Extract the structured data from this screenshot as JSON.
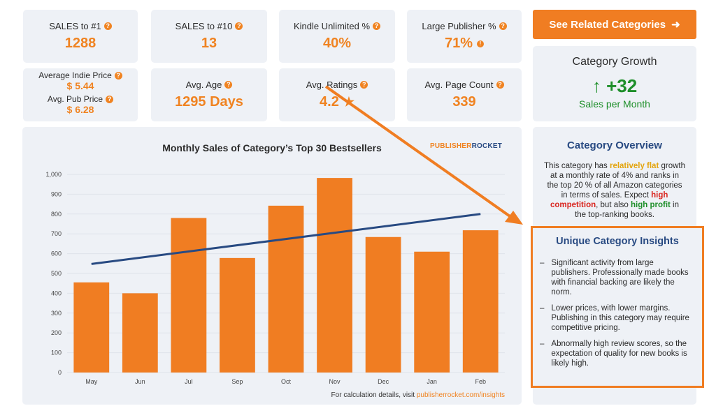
{
  "stats": {
    "sales1_label": "SALES to #1",
    "sales1_value": "1288",
    "sales10_label": "SALES to #10",
    "sales10_value": "13",
    "kindle_label": "Kindle Unlimited %",
    "kindle_value": "40%",
    "publisher_label": "Large Publisher %",
    "publisher_value": "71%",
    "indie_price_label": "Average Indie Price",
    "indie_price_value": "$ 5.44",
    "pub_price_label": "Avg. Pub Price",
    "pub_price_value": "$ 6.28",
    "age_label": "Avg. Age",
    "age_value": "1295 Days",
    "ratings_label": "Avg. Ratings",
    "ratings_value": "4.2",
    "pagecount_label": "Avg. Page Count",
    "pagecount_value": "339"
  },
  "cta": {
    "label": "See Related Categories",
    "icon": "arrow-right-icon"
  },
  "growth": {
    "title": "Category Growth",
    "value": "+32",
    "arrow": "↑",
    "subtitle": "Sales per Month"
  },
  "overview": {
    "title": "Category Overview",
    "t1": "This category has ",
    "t2": "relatively flat",
    "t3": " growth at a monthly rate of 4% and ranks in the top 20 % of all Amazon categories in terms of sales. Expect ",
    "t4": "high competition",
    "t5": ", but also ",
    "t6": "high profit",
    "t7": " in the top-ranking books."
  },
  "insights": {
    "title": "Unique Category Insights",
    "items": [
      "Significant activity from large publishers. Professionally made books with financial backing are likely the norm.",
      "Lower prices, with lower margins. Publishing in this category may require competitive pricing.",
      "Abnormally high review scores, so the expectation of quality for new books is likely high."
    ]
  },
  "chart": {
    "brand_a": "PUBLISHER",
    "brand_b": "ROCKET",
    "footnote_prefix": "For calculation details, visit ",
    "footnote_link": "publisherrocket.com/insights"
  },
  "colors": {
    "accent": "#f08321",
    "bar": "#f07d22",
    "trend": "#284a82",
    "card": "#eef1f6"
  },
  "chart_data": {
    "type": "bar",
    "title": "Monthly Sales of Category’s Top 30 Bestsellers",
    "categories": [
      "May",
      "Jun",
      "Jul",
      "Sep",
      "Oct",
      "Nov",
      "Dec",
      "Jan",
      "Feb"
    ],
    "values": [
      455,
      400,
      780,
      578,
      842,
      982,
      684,
      610,
      718
    ],
    "trend": {
      "start": 548,
      "end": 800
    },
    "yticks": [
      "0",
      "100",
      "200",
      "300",
      "400",
      "500",
      "600",
      "700",
      "800",
      "900",
      "1,000"
    ],
    "ylim": [
      0,
      1000
    ],
    "xlabel": "",
    "ylabel": ""
  }
}
